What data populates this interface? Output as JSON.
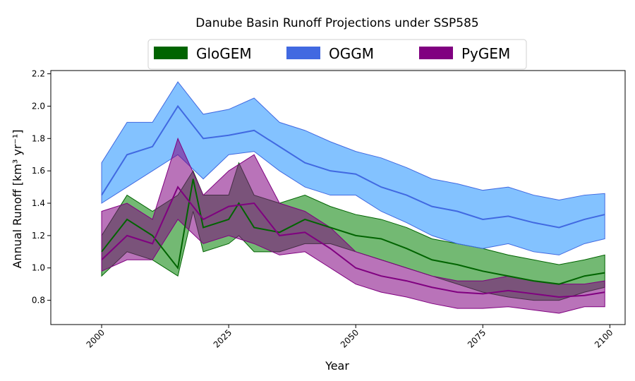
{
  "chart_data": {
    "type": "area",
    "title": "Danube Basin Runoff Projections under SSP585",
    "xlabel": "Year",
    "ylabel": "Annual Runoff [km³ yr⁻¹]",
    "xlim": [
      1990,
      2103
    ],
    "ylim": [
      0.65,
      2.22
    ],
    "xticks": [
      2000,
      2025,
      2050,
      2075,
      2100
    ],
    "yticks": [
      0.8,
      1.0,
      1.2,
      1.4,
      1.6,
      1.8,
      2.0,
      2.2
    ],
    "grid": false,
    "legend_position": "top-center",
    "series": [
      {
        "name": "GloGEM",
        "color": "#006400",
        "fill": "#008000",
        "x": [
          2000,
          2005,
          2010,
          2015,
          2018,
          2020,
          2025,
          2027,
          2030,
          2035,
          2040,
          2045,
          2050,
          2055,
          2060,
          2065,
          2070,
          2075,
          2080,
          2085,
          2090,
          2095,
          2099
        ],
        "mean": [
          1.1,
          1.3,
          1.2,
          1.0,
          1.55,
          1.25,
          1.3,
          1.4,
          1.25,
          1.22,
          1.3,
          1.25,
          1.2,
          1.18,
          1.12,
          1.05,
          1.02,
          0.98,
          0.95,
          0.92,
          0.9,
          0.95,
          0.97
        ],
        "low": [
          0.95,
          1.1,
          1.05,
          0.95,
          1.35,
          1.1,
          1.15,
          1.2,
          1.1,
          1.1,
          1.15,
          1.15,
          1.1,
          1.05,
          1.0,
          0.95,
          0.9,
          0.85,
          0.82,
          0.8,
          0.8,
          0.85,
          0.88
        ],
        "high": [
          1.2,
          1.45,
          1.35,
          1.45,
          1.6,
          1.45,
          1.45,
          1.65,
          1.45,
          1.4,
          1.45,
          1.38,
          1.33,
          1.3,
          1.25,
          1.18,
          1.15,
          1.12,
          1.08,
          1.05,
          1.02,
          1.05,
          1.08
        ]
      },
      {
        "name": "OGGM",
        "color": "#4169E1",
        "fill": "#1E90FF",
        "x": [
          2000,
          2005,
          2010,
          2015,
          2020,
          2025,
          2030,
          2035,
          2040,
          2045,
          2050,
          2055,
          2060,
          2065,
          2070,
          2075,
          2080,
          2085,
          2090,
          2095,
          2099
        ],
        "mean": [
          1.45,
          1.7,
          1.75,
          2.0,
          1.8,
          1.82,
          1.85,
          1.75,
          1.65,
          1.6,
          1.58,
          1.5,
          1.45,
          1.38,
          1.35,
          1.3,
          1.32,
          1.28,
          1.25,
          1.3,
          1.33
        ],
        "low": [
          1.4,
          1.5,
          1.6,
          1.7,
          1.55,
          1.7,
          1.72,
          1.6,
          1.5,
          1.45,
          1.45,
          1.35,
          1.28,
          1.2,
          1.15,
          1.12,
          1.15,
          1.1,
          1.08,
          1.15,
          1.18
        ],
        "high": [
          1.65,
          1.9,
          1.9,
          2.15,
          1.95,
          1.98,
          2.05,
          1.9,
          1.85,
          1.78,
          1.72,
          1.68,
          1.62,
          1.55,
          1.52,
          1.48,
          1.5,
          1.45,
          1.42,
          1.45,
          1.46
        ]
      },
      {
        "name": "PyGEM",
        "color": "#800080",
        "fill": "#800080",
        "x": [
          2000,
          2005,
          2010,
          2015,
          2020,
          2025,
          2030,
          2035,
          2040,
          2045,
          2050,
          2055,
          2060,
          2065,
          2070,
          2075,
          2080,
          2085,
          2090,
          2095,
          2099
        ],
        "mean": [
          1.05,
          1.2,
          1.15,
          1.5,
          1.3,
          1.38,
          1.4,
          1.2,
          1.22,
          1.12,
          1.0,
          0.95,
          0.92,
          0.88,
          0.85,
          0.84,
          0.86,
          0.84,
          0.82,
          0.83,
          0.85
        ],
        "low": [
          0.98,
          1.05,
          1.05,
          1.3,
          1.15,
          1.2,
          1.15,
          1.08,
          1.1,
          1.0,
          0.9,
          0.85,
          0.82,
          0.78,
          0.75,
          0.75,
          0.76,
          0.74,
          0.72,
          0.76,
          0.76
        ],
        "high": [
          1.35,
          1.4,
          1.3,
          1.8,
          1.45,
          1.6,
          1.7,
          1.4,
          1.35,
          1.25,
          1.1,
          1.05,
          1.0,
          0.95,
          0.92,
          0.92,
          0.95,
          0.92,
          0.9,
          0.9,
          0.92
        ]
      }
    ]
  }
}
